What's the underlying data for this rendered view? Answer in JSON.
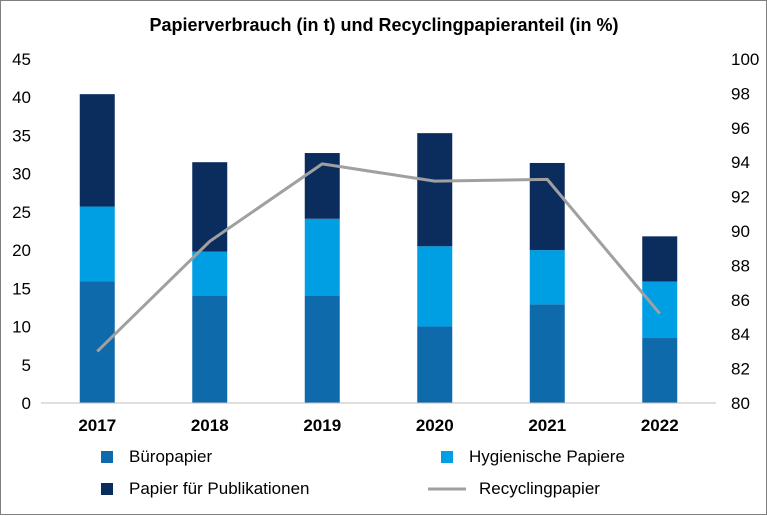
{
  "chart_data": {
    "type": "bar",
    "stacked": true,
    "title": "Papierverbrauch (in t) und Recyclingpapieranteil  (in %)",
    "categories": [
      "2017",
      "2018",
      "2019",
      "2020",
      "2021",
      "2022"
    ],
    "series": [
      {
        "name": "Büropapier",
        "type": "bar",
        "axis": "left",
        "color": "#0f6aab",
        "values": [
          15.9,
          14.0,
          14.0,
          10.0,
          12.9,
          8.5
        ]
      },
      {
        "name": "Hygienische Papiere",
        "type": "bar",
        "axis": "left",
        "color": "#009fe3",
        "values": [
          9.8,
          5.8,
          10.1,
          10.5,
          7.1,
          7.4
        ]
      },
      {
        "name": "Papier für Publikationen",
        "type": "bar",
        "axis": "left",
        "color": "#0b2d5e",
        "values": [
          14.7,
          11.7,
          8.6,
          14.8,
          11.4,
          5.9
        ]
      },
      {
        "name": "Recyclingpapier",
        "type": "line",
        "axis": "right",
        "color": "#a0a0a0",
        "values": [
          83.0,
          89.4,
          93.9,
          92.9,
          93.0,
          85.2
        ]
      }
    ],
    "ylim": [
      0,
      45
    ],
    "yticks": [
      0,
      5,
      10,
      15,
      20,
      25,
      30,
      35,
      40,
      45
    ],
    "y2lim": [
      80,
      100
    ],
    "y2ticks": [
      80,
      82,
      84,
      86,
      88,
      90,
      92,
      94,
      96,
      98,
      100
    ],
    "grid": false,
    "legend_position": "bottom"
  }
}
